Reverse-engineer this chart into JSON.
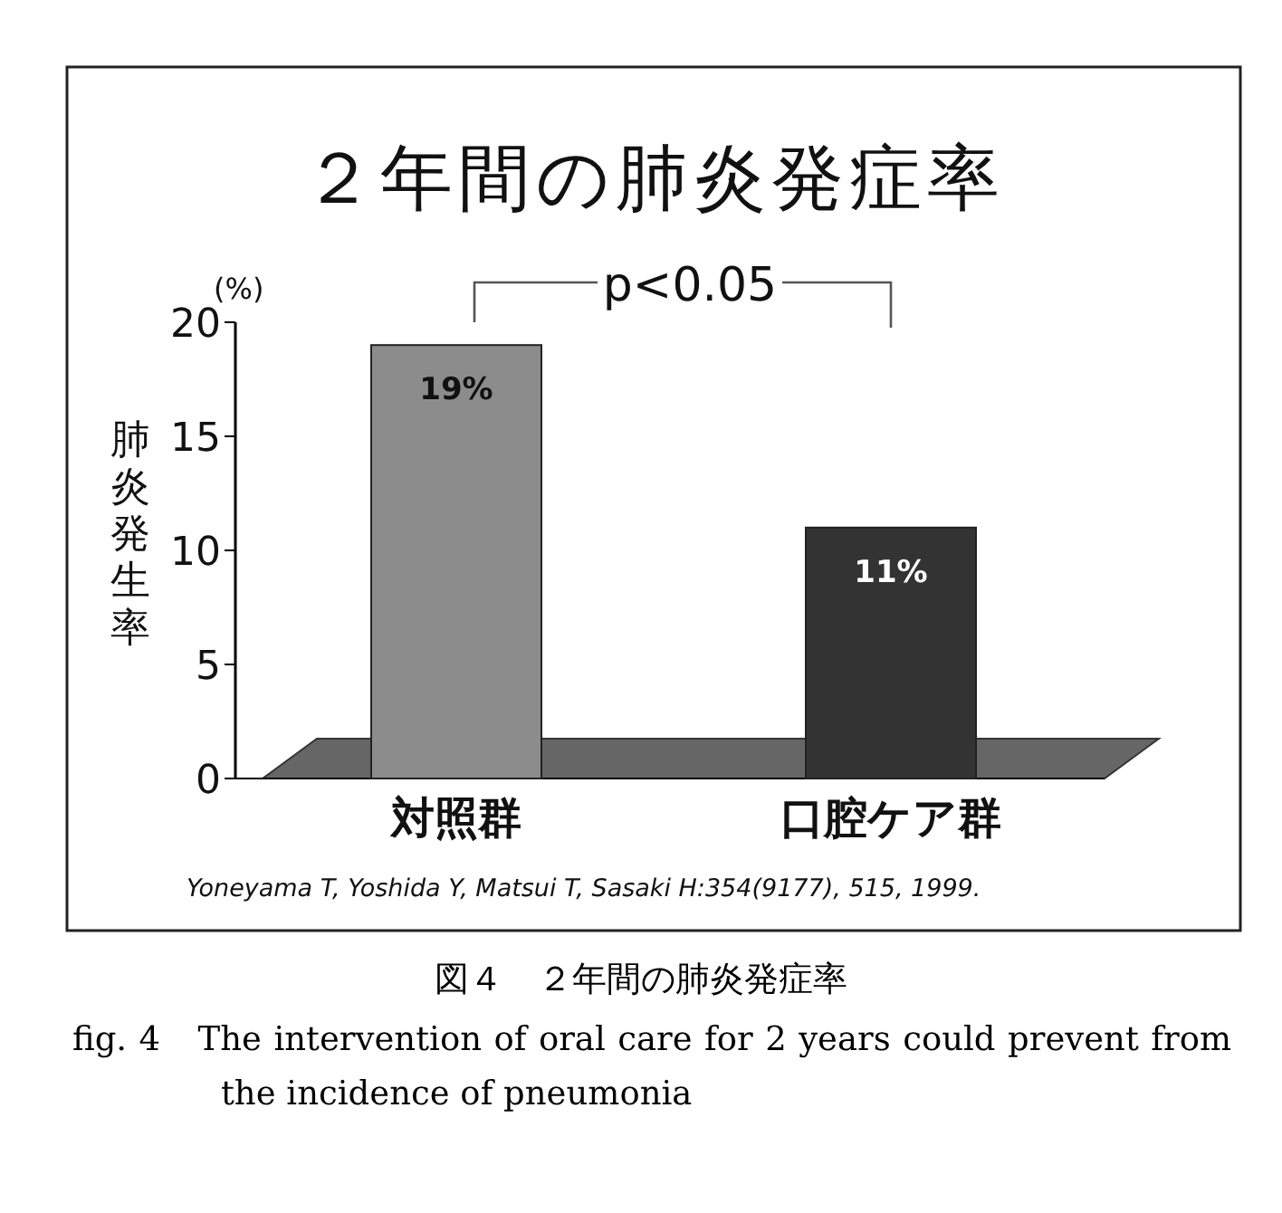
{
  "chart_data": {
    "type": "bar",
    "title": "２年間の肺炎発症率",
    "ylabel": "肺炎発生率",
    "categories": [
      "対照群",
      "口腔ケア群"
    ],
    "values": [
      19,
      11
    ],
    "colors": [
      "#8c8c8c",
      "#333333"
    ],
    "value_labels": [
      "19%",
      "11%"
    ],
    "ylim": [
      0,
      20
    ],
    "yticks": [
      0,
      5,
      10,
      15,
      20
    ],
    "annotations": [
      "(%)",
      "p<0.05",
      "Yoneyama T, Yoshida Y, Matsui T, Sasaki H:354(9177), 515, 1999.",
      "図４　２年間の肺炎発症率",
      "fig. 4　The intervention of oral care for 2 years could prevent from the incidence of pneumonia"
    ]
  }
}
